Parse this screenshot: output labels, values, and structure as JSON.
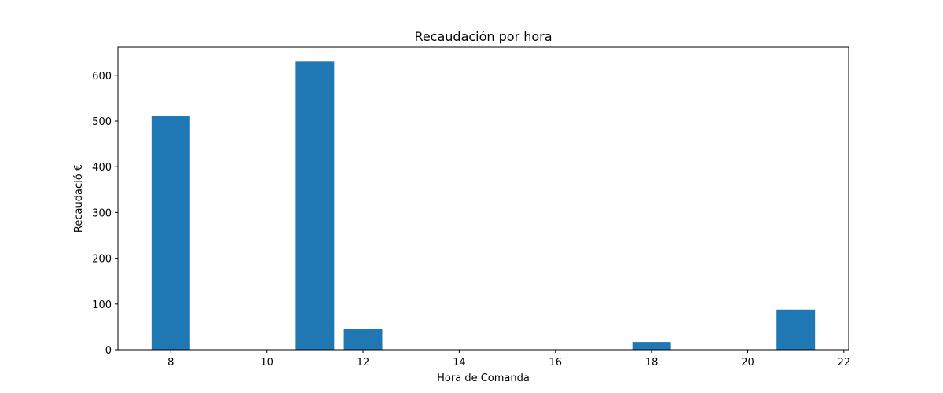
{
  "chart_data": {
    "type": "bar",
    "title": "Recaudación por hora",
    "xlabel": "Hora de Comanda",
    "ylabel": "Recaudació €",
    "x": [
      8,
      11,
      12,
      18,
      21
    ],
    "values": [
      512,
      630,
      46,
      17,
      88
    ],
    "bar_width": 0.8,
    "xlim": [
      6.9,
      22.1
    ],
    "ylim": [
      0,
      661.5
    ],
    "xticks": [
      8,
      10,
      12,
      14,
      16,
      18,
      20,
      22
    ],
    "yticks": [
      0,
      100,
      200,
      300,
      400,
      500,
      600
    ],
    "bar_color": "#1f77b4",
    "grid": false
  }
}
